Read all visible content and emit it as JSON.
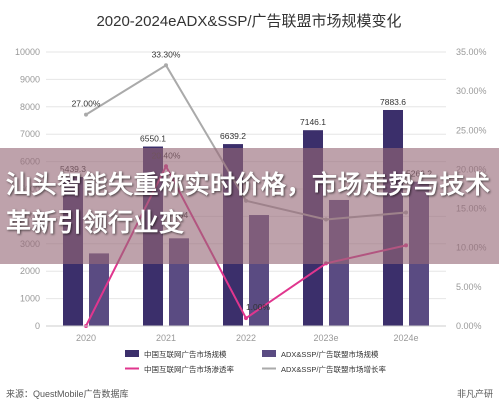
{
  "chart_data": {
    "type": "bar",
    "title": "2020-2024eADX&SSP/广告联盟市场规模变化",
    "categories": [
      "2020",
      "2021",
      "2022",
      "2023e",
      "2024e"
    ],
    "series": [
      {
        "name": "中国互联网广告市场规模",
        "kind": "bar",
        "axis": "left",
        "color": "#3b2f6b",
        "values": [
          5439.3,
          6550.1,
          6639.2,
          7146.1,
          7883.6
        ],
        "labels": [
          "5439.3",
          "6550.1",
          "6639.2",
          "7146.1",
          "7883.6"
        ]
      },
      {
        "name": "ADX&SSP/广告联盟市场规模",
        "kind": "bar",
        "axis": "left",
        "color": "#5a4b82",
        "values": [
          2650,
          3200,
          4050,
          4600,
          5266.2
        ],
        "labels": [
          "",
          "",
          "",
          "",
          "5266.2"
        ]
      },
      {
        "name": "中国互联网广告市场渗透率",
        "kind": "line",
        "axis": "right",
        "color": "#e0368e",
        "values": [
          0.0,
          20.4,
          1.0,
          8.0,
          10.3
        ],
        "labels": [
          "",
          "20.40%",
          "1.00%",
          "",
          ""
        ]
      },
      {
        "name": "ADX&SSP/广告联盟市场增长率",
        "kind": "line",
        "axis": "right",
        "color": "#aaaaaa",
        "values": [
          27.0,
          33.3,
          16.0,
          13.6,
          14.5
        ],
        "labels": [
          "27.00%",
          "33.30%",
          "",
          "",
          ""
        ]
      }
    ],
    "y_left": {
      "min": 0,
      "max": 10000,
      "ticks": [
        "0",
        "1000",
        "2000",
        "3000",
        "4000",
        "5000",
        "6000",
        "7000",
        "8000",
        "9000",
        "10000"
      ]
    },
    "y_right": {
      "min": 0,
      "max": 35,
      "ticks": [
        "0.00%",
        "5.00%",
        "10.00%",
        "15.00%",
        "20.00%",
        "25.00%",
        "30.00%",
        "35.00%"
      ]
    },
    "grid": true,
    "legend": "bottom",
    "partial_label": "504"
  },
  "overlay_text": "汕头智能失重称实时价格，市场走势与技术革新引领行业变",
  "footer": {
    "source": "来源：QuestMobile广告数据库",
    "brand": "非凡产研"
  }
}
